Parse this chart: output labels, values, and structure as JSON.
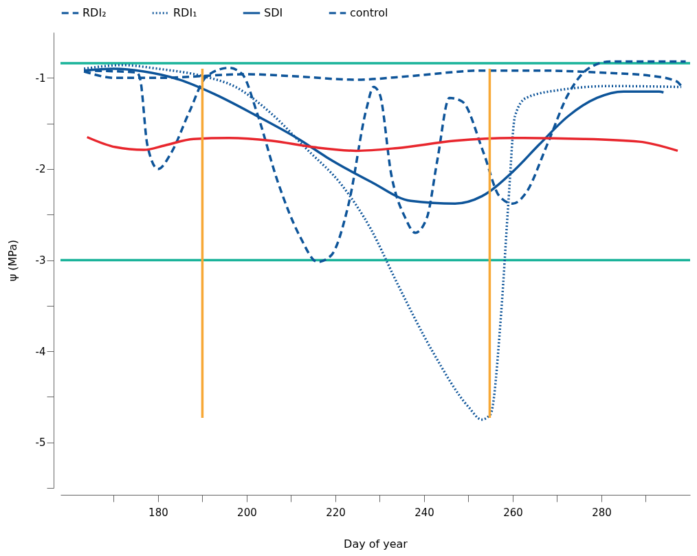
{
  "chart_data": {
    "type": "line",
    "xlabel": "Day of year",
    "ylabel": "ψ (MPa)",
    "xlim": [
      158,
      300
    ],
    "ylim": [
      -5.5,
      -0.5
    ],
    "xticks": [
      {
        "value": 170,
        "label": null
      },
      180,
      {
        "value": 190,
        "label": null
      },
      200,
      {
        "value": 210,
        "label": null
      },
      220,
      {
        "value": 230,
        "label": null
      },
      240,
      {
        "value": 250,
        "label": null
      },
      260,
      {
        "value": 270,
        "label": null
      },
      280,
      {
        "value": 290,
        "label": null
      }
    ],
    "yticks": [
      {
        "value": -5.5,
        "label": null
      },
      -5,
      {
        "value": -4.5,
        "label": null
      },
      -4,
      {
        "value": -3.5,
        "label": null
      },
      -3,
      {
        "value": -2.5,
        "label": null
      },
      -2,
      {
        "value": -1.5,
        "label": null
      },
      -1
    ],
    "grid": false,
    "legend": "top",
    "marker": "none",
    "ref_lines": [
      {
        "axis": "y",
        "value": -0.84,
        "label": null,
        "color": "#1ab39a"
      },
      {
        "axis": "y",
        "value": -3.0,
        "label": null,
        "color": "#1ab39a"
      }
    ],
    "series": [
      {
        "name": "RDI₂",
        "color": "#0d5499",
        "line_style": "dashed",
        "x": [
          163.3,
          175.2,
          176,
          177.6,
          180,
          183,
          187,
          191,
          196,
          199,
          202.3,
          207,
          212,
          216,
          219,
          223,
          227,
          228.6,
          230,
          232.6,
          235.8,
          238,
          240.6,
          243,
          245.7,
          248.6,
          253.4,
          257,
          260,
          263,
          267.7,
          272.5,
          277,
          282,
          290,
          299
        ],
        "values": [
          -0.92,
          -0.94,
          -1.02,
          -1.74,
          -2.0,
          -1.82,
          -1.38,
          -0.98,
          -0.89,
          -0.96,
          -1.38,
          -2.14,
          -2.74,
          -3.02,
          -2.95,
          -2.38,
          -1.34,
          -1.1,
          -1.18,
          -2.06,
          -2.54,
          -2.7,
          -2.54,
          -1.9,
          -1.22,
          -1.26,
          -1.82,
          -2.3,
          -2.38,
          -2.26,
          -1.74,
          -1.18,
          -0.9,
          -0.82,
          -0.82,
          -0.82
        ]
      },
      {
        "name": "RDI₁",
        "color": "#0d5499",
        "line_style": "dotted",
        "x": [
          163.3,
          172,
          180,
          190,
          197.5,
          205.5,
          213.5,
          221.5,
          228,
          234,
          242,
          250,
          253,
          255,
          257.4,
          259,
          260.5,
          263,
          271,
          282,
          298
        ],
        "values": [
          -0.9,
          -0.86,
          -0.9,
          -0.98,
          -1.1,
          -1.39,
          -1.78,
          -2.18,
          -2.66,
          -3.26,
          -4.01,
          -4.61,
          -4.75,
          -4.69,
          -3.57,
          -2.38,
          -1.42,
          -1.22,
          -1.13,
          -1.09,
          -1.1
        ]
      },
      {
        "name": "SDI",
        "color": "#0d5499",
        "line_style": "solid",
        "x": [
          163.3,
          170,
          176.8,
          184.8,
          192.8,
          202,
          212,
          218,
          228,
          237,
          247,
          253,
          260,
          266,
          272.5,
          279,
          285,
          293,
          294
        ],
        "values": [
          -0.92,
          -0.9,
          -0.93,
          -1.02,
          -1.18,
          -1.41,
          -1.68,
          -1.87,
          -2.14,
          -2.35,
          -2.38,
          -2.3,
          -2.03,
          -1.73,
          -1.42,
          -1.22,
          -1.15,
          -1.15,
          -1.16
        ]
      },
      {
        "name": "control",
        "color": "#0d5499",
        "line_style": "dashed",
        "x": [
          163.3,
          170.4,
          180,
          200,
          210,
          224.7,
          237,
          253,
          266,
          279,
          291.6,
          297,
          298
        ],
        "values": [
          -0.93,
          -1.0,
          -1.0,
          -0.96,
          -0.98,
          -1.02,
          -0.98,
          -0.92,
          -0.92,
          -0.94,
          -0.98,
          -1.04,
          -1.09
        ]
      },
      {
        "color": "#e8262d",
        "line_style": "solid",
        "x": [
          164,
          170.4,
          176.8,
          181.6,
          188,
          196,
          205.5,
          215,
          224.7,
          234,
          247,
          260,
          276,
          288.5,
          297.2
        ],
        "values": [
          -1.65,
          -1.76,
          -1.79,
          -1.74,
          -1.67,
          -1.66,
          -1.69,
          -1.76,
          -1.8,
          -1.77,
          -1.69,
          -1.66,
          -1.67,
          -1.7,
          -1.8
        ]
      },
      {
        "color": "#f7a836",
        "line_style": "solid",
        "x": [
          190,
          190
        ],
        "values": [
          -0.9,
          -4.73
        ]
      },
      {
        "color": "#f7a836",
        "line_style": "solid",
        "x": [
          254.8,
          254.8
        ],
        "values": [
          -0.9,
          -4.73
        ]
      }
    ]
  }
}
